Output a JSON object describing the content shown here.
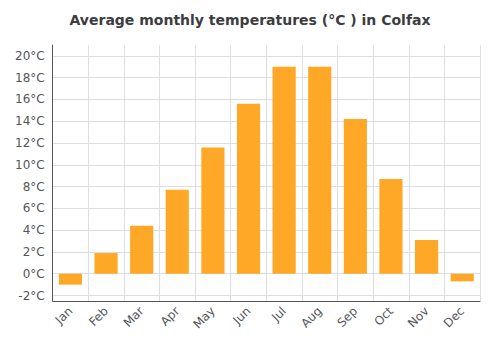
{
  "chart_data": {
    "type": "bar",
    "title": "Average monthly temperatures (°C ) in Colfax",
    "categories": [
      "Jan",
      "Feb",
      "Mar",
      "Apr",
      "May",
      "Jun",
      "Jul",
      "Aug",
      "Sep",
      "Oct",
      "Nov",
      "Dec"
    ],
    "values": [
      -1.0,
      1.9,
      4.4,
      7.7,
      11.6,
      15.6,
      19.0,
      19.0,
      14.2,
      8.7,
      3.1,
      -0.7
    ],
    "color": "#FFA726",
    "ylim": [
      -2.5,
      21
    ],
    "yticks": [
      {
        "value": -2,
        "label": "-2°C"
      },
      {
        "value": 0,
        "label": "0°C"
      },
      {
        "value": 2,
        "label": "2°C"
      },
      {
        "value": 4,
        "label": "4°C"
      },
      {
        "value": 6,
        "label": "6°C"
      },
      {
        "value": 8,
        "label": "8°C"
      },
      {
        "value": 10,
        "label": "10°C"
      },
      {
        "value": 12,
        "label": "12°C"
      },
      {
        "value": 14,
        "label": "14°C"
      },
      {
        "value": 16,
        "label": "16°C"
      },
      {
        "value": 18,
        "label": "18°C"
      },
      {
        "value": 20,
        "label": "20°C"
      }
    ],
    "grid": true
  }
}
